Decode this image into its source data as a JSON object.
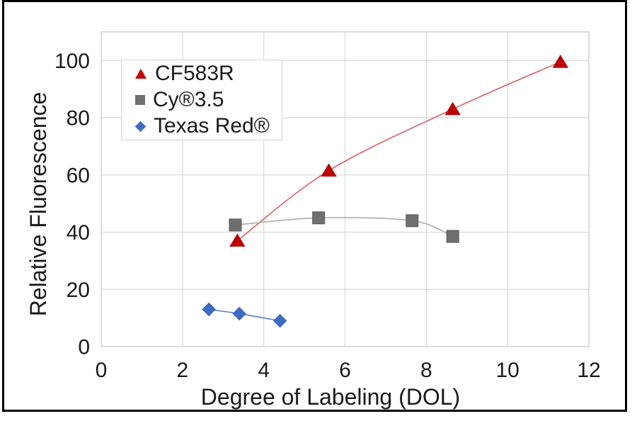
{
  "chart_data": {
    "type": "scatter",
    "title": "",
    "xlabel": "Degree of Labeling (DOL)",
    "ylabel": "Relative Fluorescence",
    "xlim": [
      0,
      12
    ],
    "ylim": [
      0,
      110
    ],
    "x_ticks": [
      0,
      2,
      4,
      6,
      8,
      10,
      12
    ],
    "y_ticks": [
      0,
      20,
      40,
      60,
      80,
      100
    ],
    "grid": true,
    "legend_position": "top-left-inside",
    "background": "#ffffff",
    "outer_border_color": "#000000",
    "grid_color": "#d9d9d9",
    "text_color": "#1a1a1a",
    "series": [
      {
        "name": "CF583R",
        "marker": "triangle",
        "color": "#c00000",
        "line_color": "#d56a6a",
        "points": [
          [
            3.35,
            37
          ],
          [
            5.6,
            61.5
          ],
          [
            8.65,
            83
          ],
          [
            11.3,
            99.5
          ]
        ]
      },
      {
        "name": "Cy®3.5",
        "marker": "square",
        "color": "#6f6f6f",
        "line_color": "#b3b3b3",
        "points": [
          [
            3.3,
            42.5
          ],
          [
            5.35,
            45
          ],
          [
            7.65,
            44
          ],
          [
            8.65,
            38.5
          ]
        ]
      },
      {
        "name": "Texas Red®",
        "marker": "diamond",
        "color": "#3e6cc5",
        "line_color": "#5b87cc",
        "points": [
          [
            2.65,
            13
          ],
          [
            3.4,
            11.5
          ],
          [
            4.4,
            9
          ]
        ]
      }
    ]
  }
}
